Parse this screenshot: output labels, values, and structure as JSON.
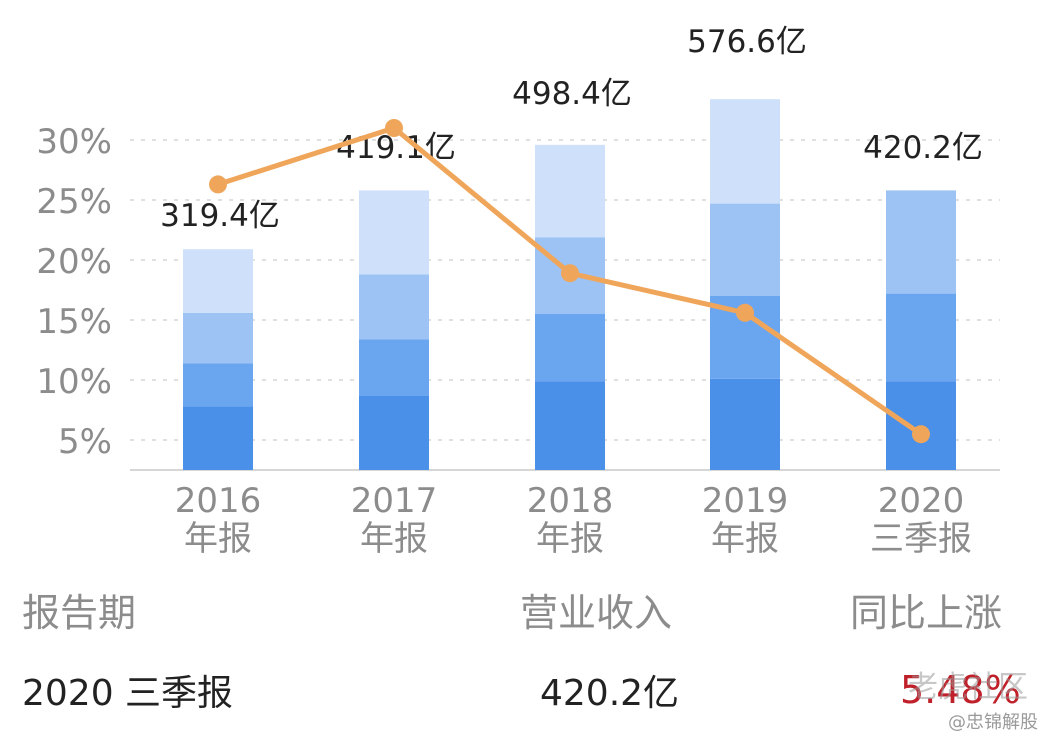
{
  "chart_data": {
    "type": "bar+line",
    "categories": [
      "2016\n年报",
      "2017\n年报",
      "2018\n年报",
      "2019\n年报",
      "2020\n三季报"
    ],
    "bar_totals": [
      319.4,
      419.1,
      498.4,
      576.6,
      420.2
    ],
    "bar_labels": [
      "319.4亿",
      "419.1亿",
      "498.4亿",
      "576.6亿",
      "420.2亿"
    ],
    "stack_segments_pct": [
      [
        5.3,
        3.6,
        4.2,
        5.3
      ],
      [
        6.2,
        4.7,
        5.4,
        7.0
      ],
      [
        7.4,
        5.6,
        6.4,
        7.7
      ],
      [
        7.6,
        6.9,
        7.7,
        8.7
      ],
      [
        7.4,
        7.3,
        8.6
      ]
    ],
    "line": {
      "values": [
        26.3,
        31.0,
        18.9,
        15.6,
        5.48
      ]
    },
    "ylim": [
      2.5,
      32
    ],
    "y_ticks": [
      5,
      10,
      15,
      20,
      25,
      30
    ],
    "y_tick_labels": [
      "5%",
      "10%",
      "15%",
      "20%",
      "25%",
      "30%"
    ],
    "grid": true,
    "colors": {
      "seg1": "#4a8fe8",
      "seg2": "#6aa6f0",
      "seg3": "#9cc3f4",
      "seg4": "#cfe0fa",
      "line": "#f0a65a",
      "axis_text": "#8c8c8c",
      "label_text": "#222222",
      "grid": "#d6d6d6"
    }
  },
  "table": {
    "headers": {
      "period": "报告期",
      "revenue": "营业收入",
      "yoy": "同比上涨"
    },
    "row": {
      "period": "2020 三季报",
      "revenue": "420.2亿",
      "yoy": "5.48%"
    }
  },
  "watermark": {
    "line1": "老虎社区",
    "line2": "@忠锦解股"
  }
}
